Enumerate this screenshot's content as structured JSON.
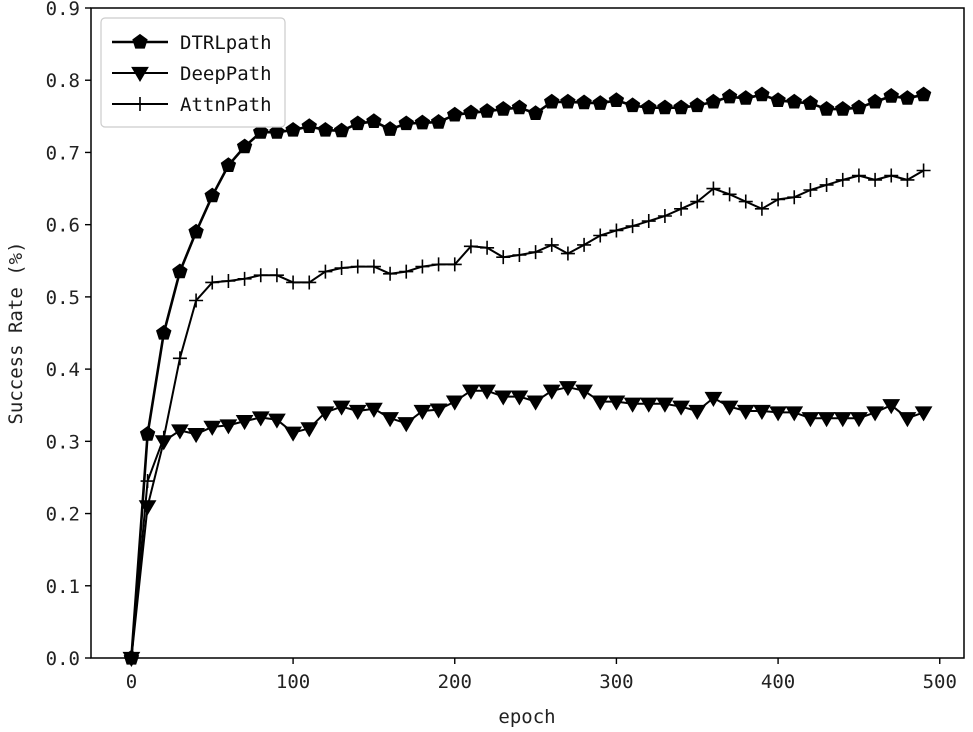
{
  "chart_data": {
    "type": "line",
    "title": "",
    "xlabel": "epoch",
    "ylabel": "Success Rate (%)",
    "xlim": [
      -25,
      515
    ],
    "ylim": [
      0.0,
      0.9
    ],
    "xticks": [
      0,
      100,
      200,
      300,
      400,
      500
    ],
    "xtick_labels": [
      "0",
      "100",
      "200",
      "300",
      "400",
      "500"
    ],
    "yticks": [
      0.0,
      0.1,
      0.2,
      0.3,
      0.4,
      0.5,
      0.6,
      0.7,
      0.8,
      0.9
    ],
    "ytick_labels": [
      "0.0",
      "0.1",
      "0.2",
      "0.3",
      "0.4",
      "0.5",
      "0.6",
      "0.7",
      "0.8",
      "0.9"
    ],
    "grid": false,
    "legend_position": "top-left",
    "x": [
      0,
      10,
      20,
      30,
      40,
      50,
      60,
      70,
      80,
      90,
      100,
      110,
      120,
      130,
      140,
      150,
      160,
      170,
      180,
      190,
      200,
      210,
      220,
      230,
      240,
      250,
      260,
      270,
      280,
      290,
      300,
      310,
      320,
      330,
      340,
      350,
      360,
      370,
      380,
      390,
      400,
      410,
      420,
      430,
      440,
      450,
      460,
      470,
      480,
      490
    ],
    "series": [
      {
        "name": "DTRLpath",
        "marker": "pentagon",
        "color": "#000000",
        "values": [
          0.0,
          0.31,
          0.45,
          0.535,
          0.59,
          0.64,
          0.682,
          0.708,
          0.728,
          0.728,
          0.731,
          0.736,
          0.731,
          0.73,
          0.74,
          0.743,
          0.732,
          0.74,
          0.741,
          0.742,
          0.752,
          0.755,
          0.757,
          0.76,
          0.762,
          0.754,
          0.77,
          0.77,
          0.769,
          0.768,
          0.772,
          0.765,
          0.762,
          0.762,
          0.762,
          0.765,
          0.77,
          0.777,
          0.775,
          0.78,
          0.772,
          0.77,
          0.768,
          0.76,
          0.76,
          0.762,
          0.77,
          0.778,
          0.775,
          0.78
        ]
      },
      {
        "name": "DeepPath",
        "marker": "triangle-down",
        "color": "#000000",
        "values": [
          0.0,
          0.21,
          0.3,
          0.315,
          0.31,
          0.32,
          0.322,
          0.328,
          0.333,
          0.33,
          0.312,
          0.318,
          0.34,
          0.348,
          0.342,
          0.345,
          0.332,
          0.325,
          0.342,
          0.344,
          0.355,
          0.37,
          0.37,
          0.362,
          0.362,
          0.355,
          0.37,
          0.375,
          0.37,
          0.355,
          0.355,
          0.352,
          0.352,
          0.352,
          0.348,
          0.342,
          0.36,
          0.348,
          0.342,
          0.342,
          0.34,
          0.34,
          0.332,
          0.332,
          0.332,
          0.332,
          0.34,
          0.35,
          0.332,
          0.34
        ]
      },
      {
        "name": "AttnPath",
        "marker": "plus",
        "color": "#000000",
        "values": [
          0.0,
          0.245,
          0.305,
          0.415,
          0.495,
          0.52,
          0.522,
          0.525,
          0.53,
          0.53,
          0.52,
          0.52,
          0.535,
          0.54,
          0.542,
          0.542,
          0.532,
          0.535,
          0.542,
          0.545,
          0.545,
          0.57,
          0.568,
          0.555,
          0.558,
          0.562,
          0.572,
          0.56,
          0.572,
          0.585,
          0.592,
          0.598,
          0.605,
          0.612,
          0.622,
          0.632,
          0.65,
          0.642,
          0.632,
          0.622,
          0.635,
          0.638,
          0.648,
          0.655,
          0.662,
          0.668,
          0.662,
          0.668,
          0.662,
          0.675
        ]
      }
    ]
  }
}
